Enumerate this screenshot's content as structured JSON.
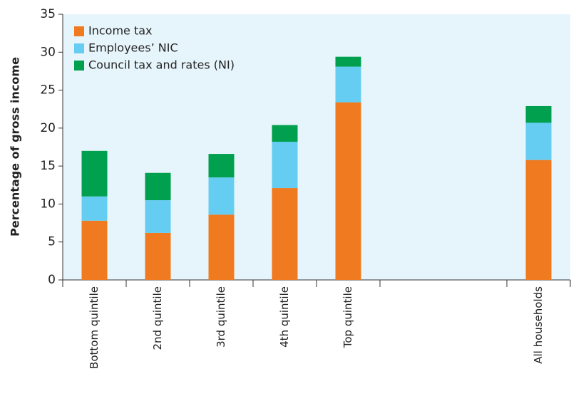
{
  "chart_data": {
    "type": "stacked_bar",
    "y_label": "Percentage of gross income",
    "categories": [
      "Bottom quintile",
      "2nd quintile",
      "3rd quintile",
      "4th quintile",
      "Top quintile",
      null,
      null,
      "All households"
    ],
    "series": [
      {
        "name": "Income tax",
        "color": "#f07a1f",
        "values": [
          7.8,
          6.2,
          8.6,
          12.1,
          23.4,
          null,
          null,
          15.8
        ]
      },
      {
        "name": "Employees’ NIC",
        "color": "#66cdf2",
        "values": [
          3.2,
          4.3,
          4.9,
          6.1,
          4.7,
          null,
          null,
          4.9
        ]
      },
      {
        "name": "Council tax and rates (NI)",
        "color": "#00a04e",
        "values": [
          6.0,
          3.6,
          3.1,
          2.2,
          1.3,
          null,
          null,
          2.2
        ]
      }
    ],
    "ylim": [
      0,
      35
    ],
    "yticks": [
      0,
      5,
      10,
      15,
      20,
      25,
      30,
      35
    ],
    "legend": "upper left"
  }
}
